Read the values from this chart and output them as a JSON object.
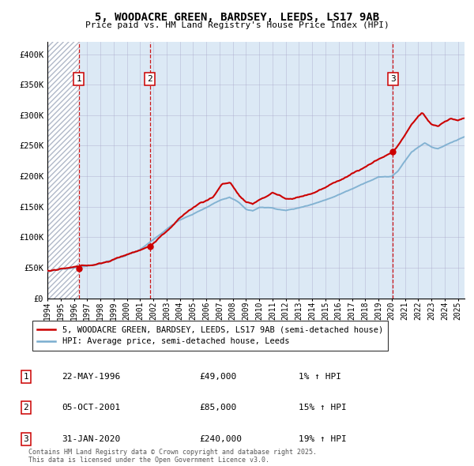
{
  "title": "5, WOODACRE GREEN, BARDSEY, LEEDS, LS17 9AB",
  "subtitle": "Price paid vs. HM Land Registry's House Price Index (HPI)",
  "legend_property": "5, WOODACRE GREEN, BARDSEY, LEEDS, LS17 9AB (semi-detached house)",
  "legend_hpi": "HPI: Average price, semi-detached house, Leeds",
  "footer": "Contains HM Land Registry data © Crown copyright and database right 2025.\nThis data is licensed under the Open Government Licence v3.0.",
  "sales": [
    {
      "num": 1,
      "date": "22-MAY-1996",
      "date_dec": 1996.38,
      "price": 49000,
      "hpi_pct": "1% ↑ HPI"
    },
    {
      "num": 2,
      "date": "05-OCT-2001",
      "date_dec": 2001.75,
      "price": 85000,
      "hpi_pct": "15% ↑ HPI"
    },
    {
      "num": 3,
      "date": "31-JAN-2020",
      "date_dec": 2020.08,
      "price": 240000,
      "hpi_pct": "19% ↑ HPI"
    }
  ],
  "price_color": "#cc0000",
  "hpi_color": "#7aadcf",
  "vline_color": "#cc0000",
  "dot_color": "#cc0000",
  "bg_color": "#dce9f5",
  "grid_color": "#aaaacc",
  "ylim": [
    0,
    420000
  ],
  "xlim_start": 1994.0,
  "xlim_end": 2025.5,
  "yticks": [
    0,
    50000,
    100000,
    150000,
    200000,
    250000,
    300000,
    350000,
    400000
  ],
  "xtick_years": [
    1994,
    1995,
    1996,
    1997,
    1998,
    1999,
    2000,
    2001,
    2002,
    2003,
    2004,
    2005,
    2006,
    2007,
    2008,
    2009,
    2010,
    2011,
    2012,
    2013,
    2014,
    2015,
    2016,
    2017,
    2018,
    2019,
    2020,
    2021,
    2022,
    2023,
    2024,
    2025
  ]
}
